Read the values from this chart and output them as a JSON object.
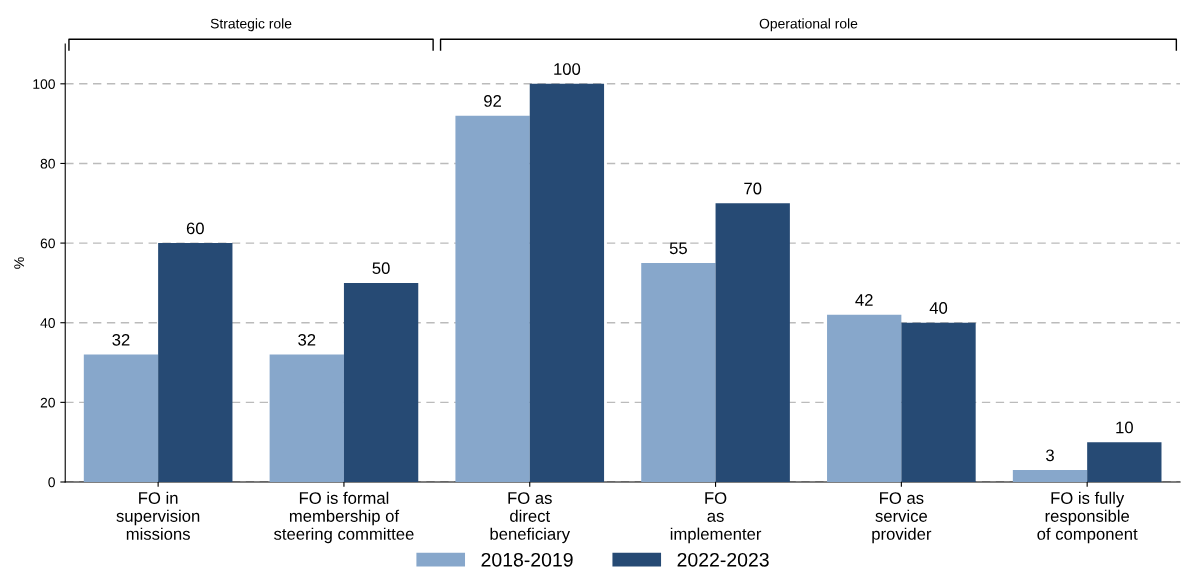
{
  "chart_data": {
    "type": "bar",
    "ylabel": "%",
    "categories": [
      "FO in\nsupervision\nmissions",
      "FO is formal\nmembership of\nsteering committee",
      "FO as\ndirect\nbeneficiary",
      "FO\nas\nimplementer",
      "FO as\nservice\nprovider",
      "FO is fully\nresponsible\nof component"
    ],
    "series": [
      {
        "name": "2018-2019",
        "color": "#87a7cb",
        "values": [
          32,
          32,
          92,
          55,
          42,
          3
        ]
      },
      {
        "name": "2022-2023",
        "color": "#264a74",
        "values": [
          60,
          50,
          100,
          70,
          40,
          10
        ]
      }
    ],
    "data_labels": true,
    "ylim": [
      0,
      110
    ],
    "yticks": [
      0,
      20,
      40,
      60,
      80,
      100
    ],
    "grid": "y",
    "legend": "bottom",
    "annotations": [
      "Strategic role",
      "Operational role"
    ]
  }
}
